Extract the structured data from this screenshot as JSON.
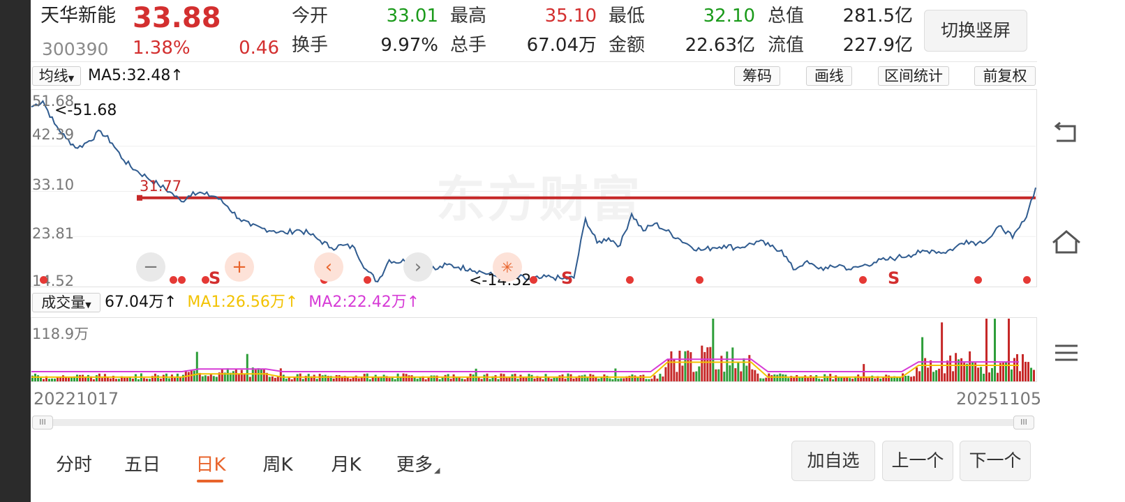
{
  "stock": {
    "name": "天华新能",
    "price": "33.88",
    "code": "300390",
    "change_pct": "1.38%",
    "change": "0.46"
  },
  "quote": [
    {
      "label": "今开",
      "value": "33.01",
      "tone": "green"
    },
    {
      "label": "最高",
      "value": "35.10",
      "tone": "red"
    },
    {
      "label": "最低",
      "value": "32.10",
      "tone": "green"
    },
    {
      "label": "总值",
      "value": "281.5亿",
      "tone": "dark"
    },
    {
      "label": "换手",
      "value": "9.97%",
      "tone": "dark"
    },
    {
      "label": "总手",
      "value": "67.04万",
      "tone": "dark"
    },
    {
      "label": "金额",
      "value": "22.63亿",
      "tone": "dark"
    },
    {
      "label": "流值",
      "value": "227.9亿",
      "tone": "dark"
    }
  ],
  "switch_label": "切换竖屏",
  "toolbar": {
    "indicator": "均线",
    "ma5": "MA5:32.48",
    "arrow": "↑",
    "buttons": [
      "筹码",
      "画线",
      "区间统计",
      "前复权"
    ]
  },
  "price_chart": {
    "y_ticks": [
      "51.68",
      "42.39",
      "33.10",
      "23.81",
      "14.52"
    ],
    "ylim": [
      14.52,
      51.68
    ],
    "max_label": "<-51.68",
    "min_label": "<-14.52",
    "hline_label": "31.77",
    "hline_value": 31.77,
    "signal_label": "S",
    "watermark": "东方财富"
  },
  "volume_bar": {
    "indicator": "成交量",
    "vol": "67.04万",
    "ma1": "MA1:26.56万",
    "ma2": "MA2:22.42万",
    "arrow": "↑",
    "max_tick": "118.9万"
  },
  "dates": {
    "start": "20221017",
    "end": "20251105"
  },
  "scroll_grip": "III",
  "colors": {
    "up": "#d32f2f",
    "down": "#1a9a1a",
    "line": "#2f5b8f",
    "ma1": "#f2c200",
    "ma2": "#d63bd6",
    "hline": "#c62828"
  },
  "tabs": [
    "分时",
    "五日",
    "日K",
    "周K",
    "月K",
    "更多"
  ],
  "active_tab": "日K",
  "actions": [
    "加自选",
    "上一个",
    "下一个"
  ],
  "chart_data": {
    "type": "line",
    "x_range": [
      "20221017",
      "20251105"
    ],
    "ylim": [
      14.52,
      51.68
    ],
    "close_series_approx": [
      50.5,
      51.68,
      47.0,
      44.0,
      42.0,
      43.5,
      45.5,
      43.0,
      39.5,
      37.5,
      36.0,
      34.5,
      33.0,
      31.0,
      33.0,
      32.5,
      32.0,
      30.0,
      27.5,
      26.0,
      25.5,
      25.0,
      24.5,
      25.2,
      24.5,
      23.0,
      21.5,
      22.0,
      21.5,
      17.0,
      14.52,
      19.0,
      18.5,
      19.8,
      18.5,
      17.0,
      18.0,
      17.5,
      17.2,
      16.5,
      15.8,
      15.2,
      15.6,
      15.0,
      15.2,
      15.5,
      15.1,
      15.3,
      27.5,
      22.5,
      23.5,
      22.0,
      28.5,
      25.0,
      26.5,
      25.0,
      23.5,
      22.0,
      21.0,
      21.5,
      22.0,
      21.5,
      22.0,
      22.8,
      21.8,
      21.0,
      17.0,
      18.5,
      17.5,
      17.2,
      18.0,
      17.0,
      17.8,
      18.5,
      19.0,
      19.5,
      20.0,
      20.5,
      21.0,
      20.5,
      21.5,
      23.0,
      22.5,
      23.5,
      26.0,
      23.5,
      27.0,
      33.88
    ]
  }
}
